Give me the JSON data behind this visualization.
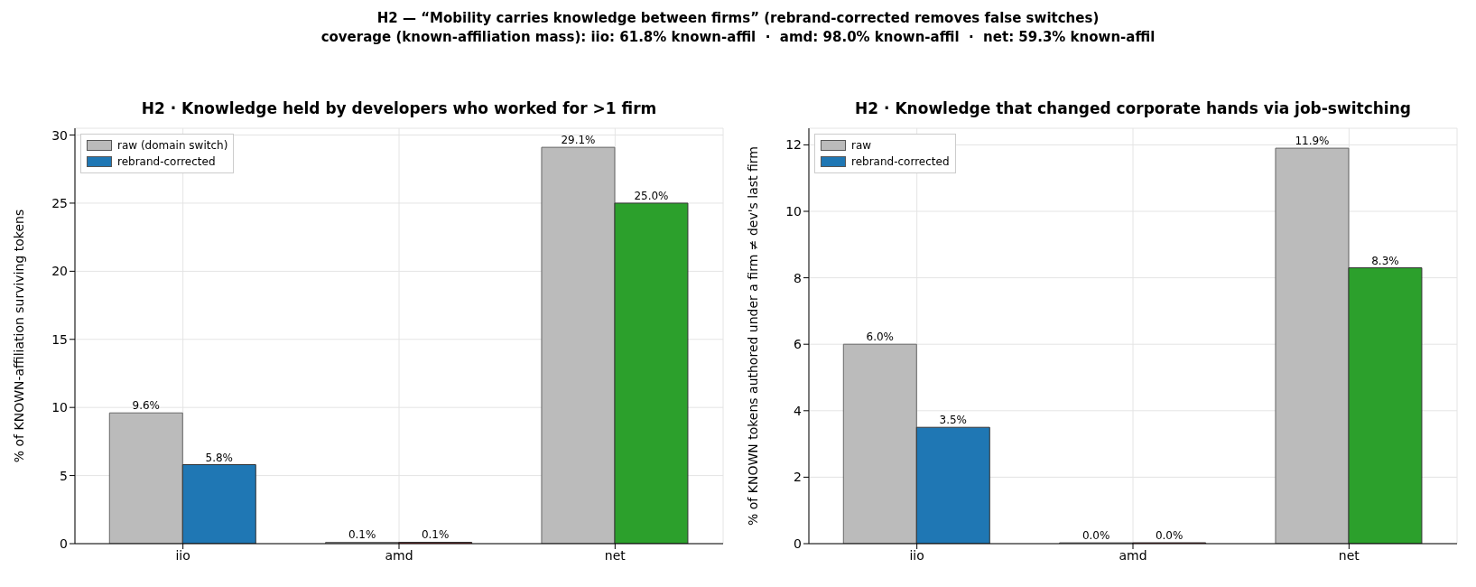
{
  "chart_data": [
    {
      "type": "bar",
      "title": "H2 · Knowledge held by developers who worked for >1 firm",
      "ylabel": "% of KNOWN-affiliation surviving tokens",
      "annotations": [
        "H2 — “Mobility carries knowledge between firms” (rebrand-corrected removes false switches)",
        "coverage (known-affiliation mass): iio: 61.8% known-affil  ·  amd: 98.0% known-affil  ·  net: 59.3% known-affil"
      ],
      "categories": [
        "iio",
        "amd",
        "net"
      ],
      "ylim": [
        0,
        30.5
      ],
      "yticks": [
        0,
        5,
        10,
        15,
        20,
        25,
        30
      ],
      "grid": true,
      "legend": "top left",
      "series": [
        {
          "name": "raw (domain switch)",
          "color": "#bbbbbb",
          "values": [
            9.6,
            0.1,
            29.1
          ],
          "value_labels": [
            "9.6%",
            "0.1%",
            "29.1%"
          ]
        },
        {
          "name": "rebrand-corrected",
          "color": "#1f77b4",
          "colors": [
            "#1f77b4",
            "#d62728",
            "#2ca02c"
          ],
          "values": [
            5.8,
            0.1,
            25.0
          ],
          "value_labels": [
            "5.8%",
            "0.1%",
            "25.0%"
          ]
        }
      ]
    },
    {
      "type": "bar",
      "title": "H2 · Knowledge that changed corporate hands via job-switching",
      "ylabel": "% of KNOWN tokens authored under a firm ≠ dev's last firm",
      "categories": [
        "iio",
        "amd",
        "net"
      ],
      "ylim": [
        0,
        12.5
      ],
      "yticks": [
        0,
        2,
        4,
        6,
        8,
        10,
        12
      ],
      "grid": true,
      "legend": "top left",
      "series": [
        {
          "name": "raw",
          "color": "#bbbbbb",
          "values": [
            6.0,
            0.0,
            11.9
          ],
          "value_labels": [
            "6.0%",
            "0.0%",
            "11.9%"
          ]
        },
        {
          "name": "rebrand-corrected",
          "color": "#1f77b4",
          "colors": [
            "#1f77b4",
            "#d62728",
            "#2ca02c"
          ],
          "values": [
            3.5,
            0.0,
            8.3
          ],
          "value_labels": [
            "3.5%",
            "0.0%",
            "8.3%"
          ]
        }
      ]
    }
  ]
}
